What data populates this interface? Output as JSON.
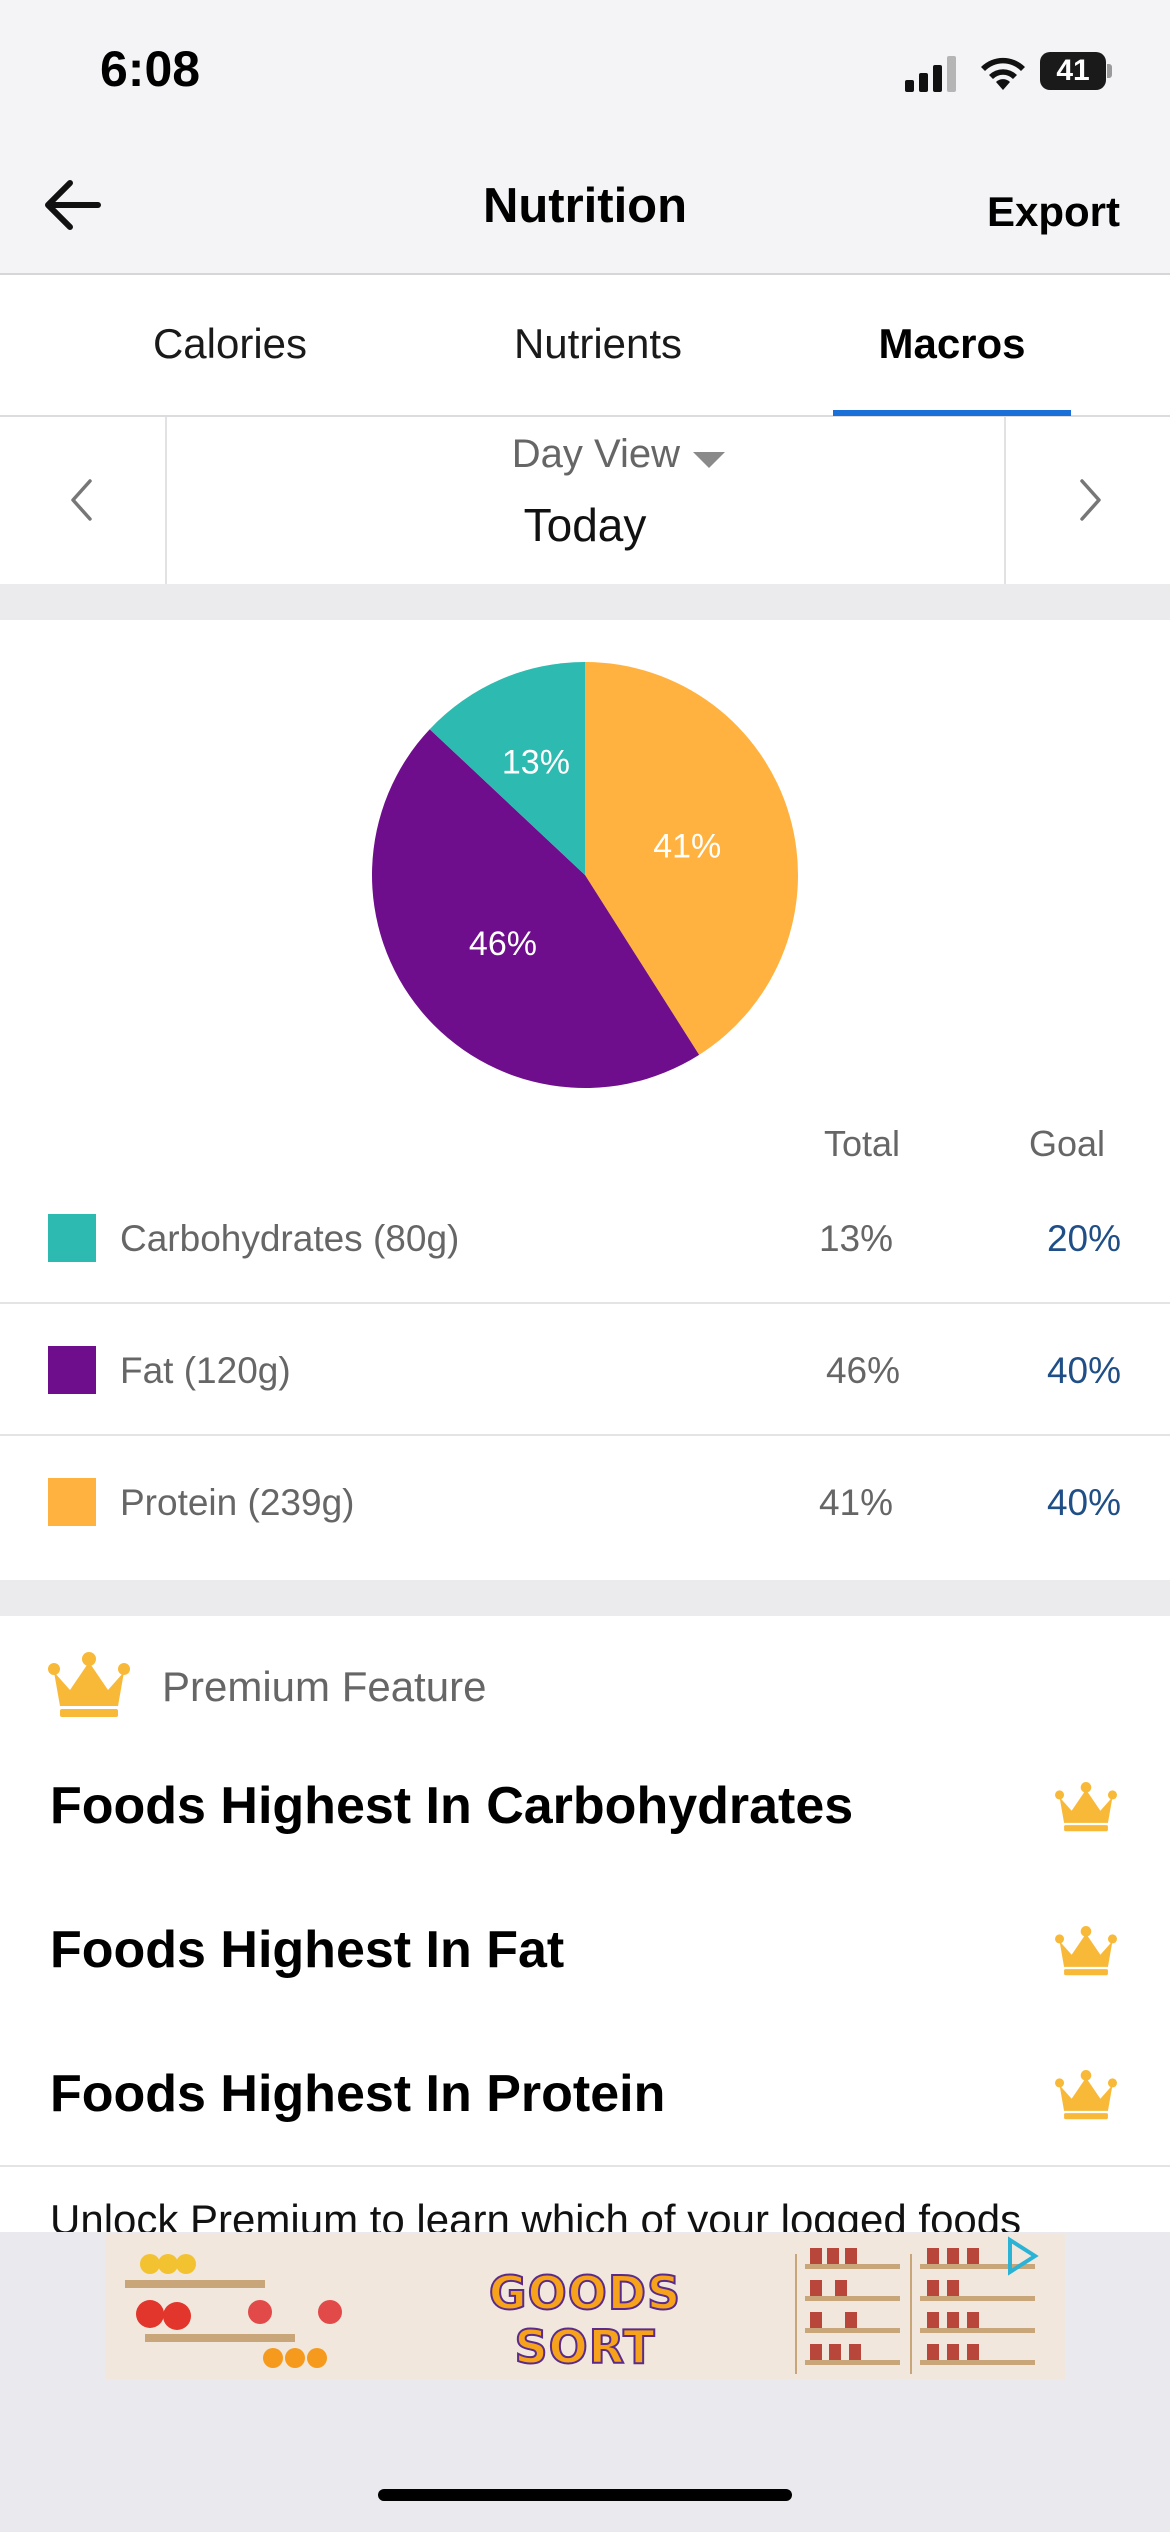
{
  "status": {
    "time": "6:08",
    "battery": "41"
  },
  "nav": {
    "title": "Nutrition",
    "export_label": "Export"
  },
  "tabs": [
    {
      "label": "Calories",
      "active": false
    },
    {
      "label": "Nutrients",
      "active": false
    },
    {
      "label": "Macros",
      "active": true
    }
  ],
  "day_selector": {
    "view_label": "Day View",
    "date_label": "Today"
  },
  "chart_data": {
    "type": "pie",
    "slices": [
      {
        "label": "Carbohydrates",
        "value": 13,
        "display": "13%",
        "color": "#2dbab0"
      },
      {
        "label": "Fat",
        "value": 46,
        "display": "46%",
        "color": "#6e0e8c"
      },
      {
        "label": "Protein",
        "value": 41,
        "display": "41%",
        "color": "#ffb23f"
      }
    ]
  },
  "macro_table": {
    "headers": {
      "total": "Total",
      "goal": "Goal"
    },
    "rows": [
      {
        "label": "Carbohydrates (80g)",
        "total": "13%",
        "goal": "20%",
        "color": "#2dbab0"
      },
      {
        "label": "Fat (120g)",
        "total": "46%",
        "goal": "40%",
        "color": "#6e0e8c"
      },
      {
        "label": "Protein (239g)",
        "total": "41%",
        "goal": "40%",
        "color": "#ffb23f"
      }
    ]
  },
  "premium": {
    "label": "Premium Feature",
    "items": [
      "Foods Highest In Carbohydrates",
      "Foods Highest In Fat",
      "Foods Highest In Protein"
    ],
    "unlock_text": "Unlock Premium to learn which of your logged foods"
  },
  "ad": {
    "text": "GOODS SORT"
  },
  "colors": {
    "accent": "#1b6fd8",
    "goal_text": "#1f4f86",
    "crown": "#f8b938"
  }
}
